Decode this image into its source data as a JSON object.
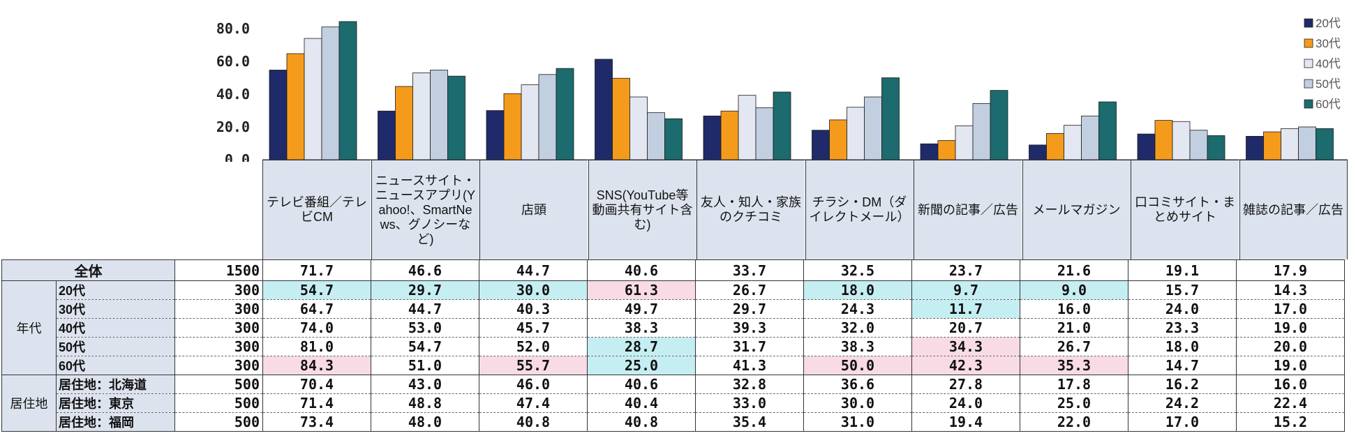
{
  "chart_data": {
    "type": "bar",
    "categories": [
      "テレビ番組／テレビCM",
      "ニュースサイト・ニュースアプリ(Yahoo!、SmartNews、グノシーなど)",
      "店頭",
      "SNS(YouTube等動画共有サイト含む)",
      "友人・知人・家族のクチコミ",
      "チラシ・DM（ダイレクトメール）",
      "新聞の記事／広告",
      "メールマガジン",
      "口コミサイト・まとめサイト",
      "雑誌の記事／広告"
    ],
    "series": [
      {
        "name": "20代",
        "color": "#1f2a6b",
        "values": [
          54.7,
          29.7,
          30.0,
          61.3,
          26.7,
          18.0,
          9.7,
          9.0,
          15.7,
          14.3
        ]
      },
      {
        "name": "30代",
        "color": "#f59b1b",
        "values": [
          64.7,
          44.7,
          40.3,
          49.7,
          29.7,
          24.3,
          11.7,
          16.0,
          24.0,
          17.0
        ]
      },
      {
        "name": "40代",
        "color": "#e3e7f1",
        "values": [
          74.0,
          53.0,
          45.7,
          38.3,
          39.3,
          32.0,
          20.7,
          21.0,
          23.3,
          19.0
        ]
      },
      {
        "name": "50代",
        "color": "#c2cfe0",
        "values": [
          81.0,
          54.7,
          52.0,
          28.7,
          31.7,
          38.3,
          34.3,
          26.7,
          18.0,
          20.0
        ]
      },
      {
        "name": "60代",
        "color": "#1c6b6e",
        "values": [
          84.3,
          51.0,
          55.7,
          25.0,
          41.3,
          50.0,
          42.3,
          35.3,
          14.7,
          19.0
        ]
      }
    ],
    "yticks": [
      "0.0",
      "20.0",
      "40.0",
      "60.0",
      "80.0"
    ],
    "ylim": [
      0,
      85
    ],
    "legend_position": "top-right",
    "grid": false
  },
  "table": {
    "total": {
      "label": "全体",
      "n": "1500",
      "values": [
        "71.7",
        "46.6",
        "44.7",
        "40.6",
        "33.7",
        "32.5",
        "23.7",
        "21.6",
        "19.1",
        "17.9"
      ]
    },
    "groups": [
      {
        "label": "年代",
        "rows": [
          {
            "label": "20代",
            "n": "300",
            "values": [
              "54.7",
              "29.7",
              "30.0",
              "61.3",
              "26.7",
              "18.0",
              "9.7",
              "9.0",
              "15.7",
              "14.3"
            ],
            "hl": [
              "low",
              "low",
              "low",
              "high",
              "",
              "low",
              "low",
              "low",
              "",
              ""
            ]
          },
          {
            "label": "30代",
            "n": "300",
            "values": [
              "64.7",
              "44.7",
              "40.3",
              "49.7",
              "29.7",
              "24.3",
              "11.7",
              "16.0",
              "24.0",
              "17.0"
            ],
            "hl": [
              "",
              "",
              "",
              "",
              "",
              "",
              "low",
              "",
              "",
              ""
            ]
          },
          {
            "label": "40代",
            "n": "300",
            "values": [
              "74.0",
              "53.0",
              "45.7",
              "38.3",
              "39.3",
              "32.0",
              "20.7",
              "21.0",
              "23.3",
              "19.0"
            ],
            "hl": [
              "",
              "",
              "",
              "",
              "",
              "",
              "",
              "",
              "",
              ""
            ]
          },
          {
            "label": "50代",
            "n": "300",
            "values": [
              "81.0",
              "54.7",
              "52.0",
              "28.7",
              "31.7",
              "38.3",
              "34.3",
              "26.7",
              "18.0",
              "20.0"
            ],
            "hl": [
              "",
              "",
              "",
              "low",
              "",
              "",
              "high",
              "",
              "",
              ""
            ]
          },
          {
            "label": "60代",
            "n": "300",
            "values": [
              "84.3",
              "51.0",
              "55.7",
              "25.0",
              "41.3",
              "50.0",
              "42.3",
              "35.3",
              "14.7",
              "19.0"
            ],
            "hl": [
              "high",
              "",
              "high",
              "low",
              "",
              "high",
              "high",
              "high",
              "",
              ""
            ]
          }
        ]
      },
      {
        "label": "居住地",
        "rows": [
          {
            "label": "居住地：北海道",
            "n": "500",
            "values": [
              "70.4",
              "43.0",
              "46.0",
              "40.6",
              "32.8",
              "36.6",
              "27.8",
              "17.8",
              "16.2",
              "16.0"
            ],
            "hl": [
              "",
              "",
              "",
              "",
              "",
              "",
              "",
              "",
              "",
              ""
            ]
          },
          {
            "label": "居住地：東京",
            "n": "500",
            "values": [
              "71.4",
              "48.8",
              "47.4",
              "40.4",
              "33.0",
              "30.0",
              "24.0",
              "25.0",
              "24.2",
              "22.4"
            ],
            "hl": [
              "",
              "",
              "",
              "",
              "",
              "",
              "",
              "",
              "",
              ""
            ]
          },
          {
            "label": "居住地：福岡",
            "n": "500",
            "values": [
              "73.4",
              "48.0",
              "40.8",
              "40.8",
              "35.4",
              "31.0",
              "19.4",
              "22.0",
              "17.0",
              "15.2"
            ],
            "hl": [
              "",
              "",
              "",
              "",
              "",
              "",
              "",
              "",
              "",
              ""
            ]
          }
        ]
      }
    ]
  }
}
